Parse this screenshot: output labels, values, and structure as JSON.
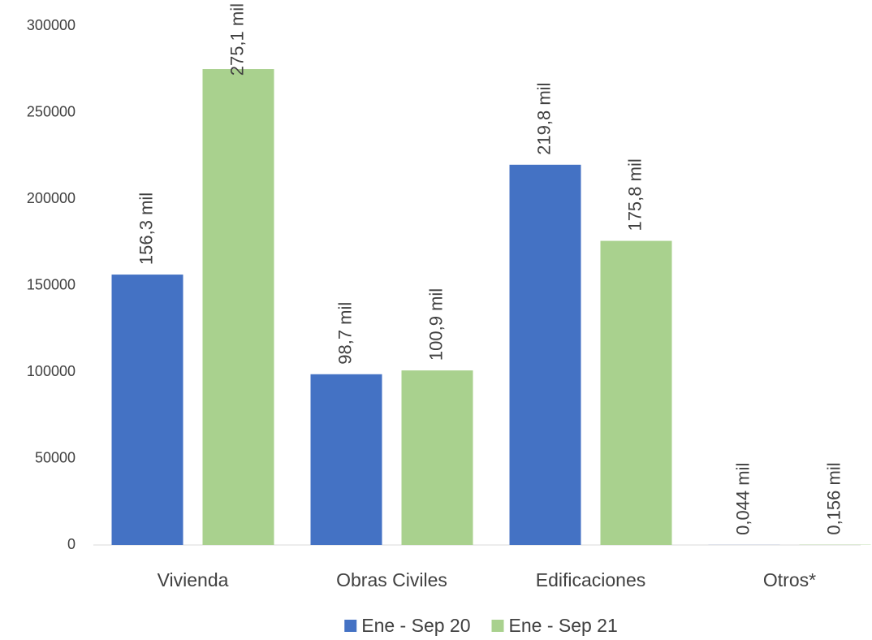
{
  "chart_data": {
    "type": "bar",
    "categories": [
      "Vivienda",
      "Obras Civiles",
      "Edificaciones",
      "Otros*"
    ],
    "series": [
      {
        "name": "Ene - Sep 20",
        "color": "#4472c4",
        "values": [
          156300,
          98700,
          219800,
          44
        ],
        "value_labels": [
          "156,3 mil",
          "98,7 mil",
          "219,8 mil",
          "0,044 mil"
        ]
      },
      {
        "name": "Ene - Sep 21",
        "color": "#a9d18e",
        "values": [
          275100,
          100900,
          175800,
          156
        ],
        "value_labels": [
          "275,1 mil",
          "100,9 mil",
          "175,8 mil",
          "0,156 mil"
        ]
      }
    ],
    "ylim": [
      0,
      300000
    ],
    "yticks": [
      0,
      50000,
      100000,
      150000,
      200000,
      250000,
      300000
    ],
    "grid": false,
    "legend": "bottom"
  }
}
